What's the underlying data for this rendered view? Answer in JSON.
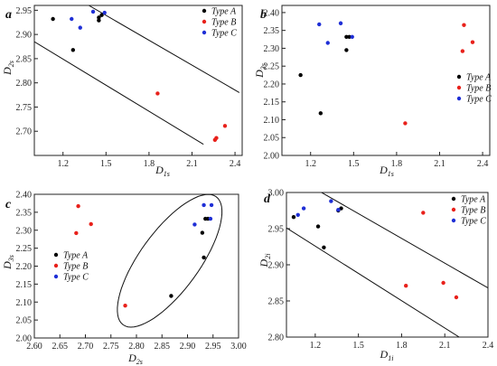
{
  "colors": {
    "type_a": "#000000",
    "type_b": "#e8211b",
    "type_c": "#1f2fd6",
    "axis": "#222222"
  },
  "chart_data": [
    {
      "type": "scatter",
      "panel_label": "a",
      "xlabel": {
        "base": "D",
        "sub": "1s"
      },
      "ylabel": {
        "base": "D",
        "sub": "2s"
      },
      "xlim": [
        1.0,
        2.45
      ],
      "ylim": [
        2.65,
        2.96
      ],
      "xticks": [
        1.2,
        1.5,
        1.8,
        2.1,
        2.4
      ],
      "xtick_labels": [
        "1.2",
        "1.5",
        "1.8",
        "2.1",
        "2.4"
      ],
      "yticks": [
        2.7,
        2.75,
        2.8,
        2.85,
        2.9,
        2.95
      ],
      "ytick_labels": [
        "2.70",
        "2.75",
        "2.80",
        "2.85",
        "2.90",
        "2.95"
      ],
      "legend_position": "top-right",
      "series": [
        {
          "name": "Type A",
          "key": "type_a",
          "points": [
            [
              1.13,
              2.932
            ],
            [
              1.27,
              2.868
            ],
            [
              1.45,
              2.935
            ],
            [
              1.45,
              2.929
            ],
            [
              1.47,
              2.94
            ]
          ]
        },
        {
          "name": "Type B",
          "key": "type_b",
          "points": [
            [
              1.86,
              2.778
            ],
            [
              2.26,
              2.682
            ],
            [
              2.27,
              2.686
            ],
            [
              2.33,
              2.711
            ]
          ]
        },
        {
          "name": "Type C",
          "key": "type_c",
          "points": [
            [
              1.26,
              2.932
            ],
            [
              1.32,
              2.914
            ],
            [
              1.41,
              2.947
            ],
            [
              1.49,
              2.945
            ]
          ]
        }
      ],
      "boundary_lines": [
        [
          [
            1.0,
            2.885
          ],
          [
            2.18,
            2.673
          ]
        ],
        [
          [
            1.38,
            2.96
          ],
          [
            2.43,
            2.78
          ]
        ]
      ]
    },
    {
      "type": "scatter",
      "panel_label": "b",
      "xlabel": {
        "base": "D",
        "sub": "1s"
      },
      "ylabel": {
        "base": "D",
        "sub": "3s"
      },
      "xlim": [
        1.0,
        2.45
      ],
      "ylim": [
        2.0,
        2.42
      ],
      "xticks": [
        1.2,
        1.5,
        1.8,
        2.1,
        2.4
      ],
      "xtick_labels": [
        "1.2",
        "1.5",
        "1.8",
        "2.1",
        "2.4"
      ],
      "yticks": [
        2.0,
        2.05,
        2.1,
        2.15,
        2.2,
        2.25,
        2.3,
        2.35,
        2.4
      ],
      "ytick_labels": [
        "2.00",
        "2.05",
        "2.10",
        "2.15",
        "2.20",
        "2.25",
        "2.30",
        "2.35",
        "2.40"
      ],
      "legend_position": "right",
      "series": [
        {
          "name": "Type A",
          "key": "type_a",
          "points": [
            [
              1.13,
              2.225
            ],
            [
              1.27,
              2.118
            ],
            [
              1.45,
              2.295
            ],
            [
              1.45,
              2.332
            ],
            [
              1.47,
              2.332
            ]
          ]
        },
        {
          "name": "Type B",
          "key": "type_b",
          "points": [
            [
              1.86,
              2.09
            ],
            [
              2.26,
              2.292
            ],
            [
              2.27,
              2.365
            ],
            [
              2.33,
              2.317
            ]
          ]
        },
        {
          "name": "Type C",
          "key": "type_c",
          "points": [
            [
              1.26,
              2.367
            ],
            [
              1.32,
              2.315
            ],
            [
              1.41,
              2.37
            ],
            [
              1.49,
              2.332
            ]
          ]
        }
      ]
    },
    {
      "type": "scatter",
      "panel_label": "c",
      "xlabel": {
        "base": "D",
        "sub": "2s"
      },
      "ylabel": {
        "base": "D",
        "sub": "3s"
      },
      "xlim": [
        2.6,
        3.0
      ],
      "ylim": [
        2.0,
        2.4
      ],
      "xticks": [
        2.6,
        2.65,
        2.7,
        2.75,
        2.8,
        2.85,
        2.9,
        2.95,
        3.0
      ],
      "xtick_labels": [
        "2.60",
        "2.65",
        "2.70",
        "2.75",
        "2.80",
        "2.85",
        "2.90",
        "2.95",
        "3.00"
      ],
      "yticks": [
        2.0,
        2.05,
        2.1,
        2.15,
        2.2,
        2.25,
        2.3,
        2.35,
        2.4
      ],
      "ytick_labels": [
        "2.00",
        "2.05",
        "2.10",
        "2.15",
        "2.20",
        "2.25",
        "2.30",
        "2.35",
        "2.40"
      ],
      "legend_position": "left",
      "series": [
        {
          "name": "Type A",
          "key": "type_a",
          "points": [
            [
              2.868,
              2.117
            ],
            [
              2.932,
              2.224
            ],
            [
              2.929,
              2.293
            ],
            [
              2.935,
              2.332
            ],
            [
              2.94,
              2.332
            ]
          ]
        },
        {
          "name": "Type B",
          "key": "type_b",
          "points": [
            [
              2.778,
              2.09
            ],
            [
              2.682,
              2.292
            ],
            [
              2.686,
              2.367
            ],
            [
              2.711,
              2.317
            ]
          ]
        },
        {
          "name": "Type C",
          "key": "type_c",
          "points": [
            [
              2.914,
              2.316
            ],
            [
              2.932,
              2.37
            ],
            [
              2.945,
              2.332
            ],
            [
              2.947,
              2.37
            ]
          ]
        }
      ],
      "ellipse": {
        "cx": 2.865,
        "cy": 2.215,
        "rx": 0.155,
        "ry": 0.058,
        "angle_deg": 54
      }
    },
    {
      "type": "scatter",
      "panel_label": "d",
      "xlabel": {
        "base": "D",
        "sub": "1i"
      },
      "ylabel": {
        "base": "D",
        "sub": "2i"
      },
      "xlim": [
        1.0,
        2.4
      ],
      "ylim": [
        2.8,
        3.0
      ],
      "xticks": [
        1.2,
        1.5,
        1.8,
        2.1,
        2.4
      ],
      "xtick_labels": [
        "1.2",
        "1.5",
        "1.8",
        "2.1",
        "2.4"
      ],
      "yticks": [
        2.8,
        2.85,
        2.9,
        2.95,
        3.0
      ],
      "ytick_labels": [
        "2.80",
        "2.85",
        "2.90",
        "2.95",
        "3.00"
      ],
      "legend_position": "top-right",
      "series": [
        {
          "name": "Type A",
          "key": "type_a",
          "points": [
            [
              1.05,
              2.966
            ],
            [
              1.22,
              2.953
            ],
            [
              1.26,
              2.924
            ],
            [
              1.36,
              2.975
            ],
            [
              1.38,
              2.978
            ]
          ]
        },
        {
          "name": "Type B",
          "key": "type_b",
          "points": [
            [
              1.83,
              2.871
            ],
            [
              1.95,
              2.972
            ],
            [
              2.09,
              2.875
            ],
            [
              2.18,
              2.855
            ]
          ]
        },
        {
          "name": "Type C",
          "key": "type_c",
          "points": [
            [
              1.08,
              2.969
            ],
            [
              1.12,
              2.978
            ],
            [
              1.31,
              2.988
            ],
            [
              1.36,
              2.976
            ]
          ]
        }
      ],
      "boundary_lines": [
        [
          [
            1.0,
            2.951
          ],
          [
            2.2,
            2.8
          ]
        ],
        [
          [
            1.2,
            3.005
          ],
          [
            2.4,
            2.868
          ]
        ]
      ]
    }
  ]
}
